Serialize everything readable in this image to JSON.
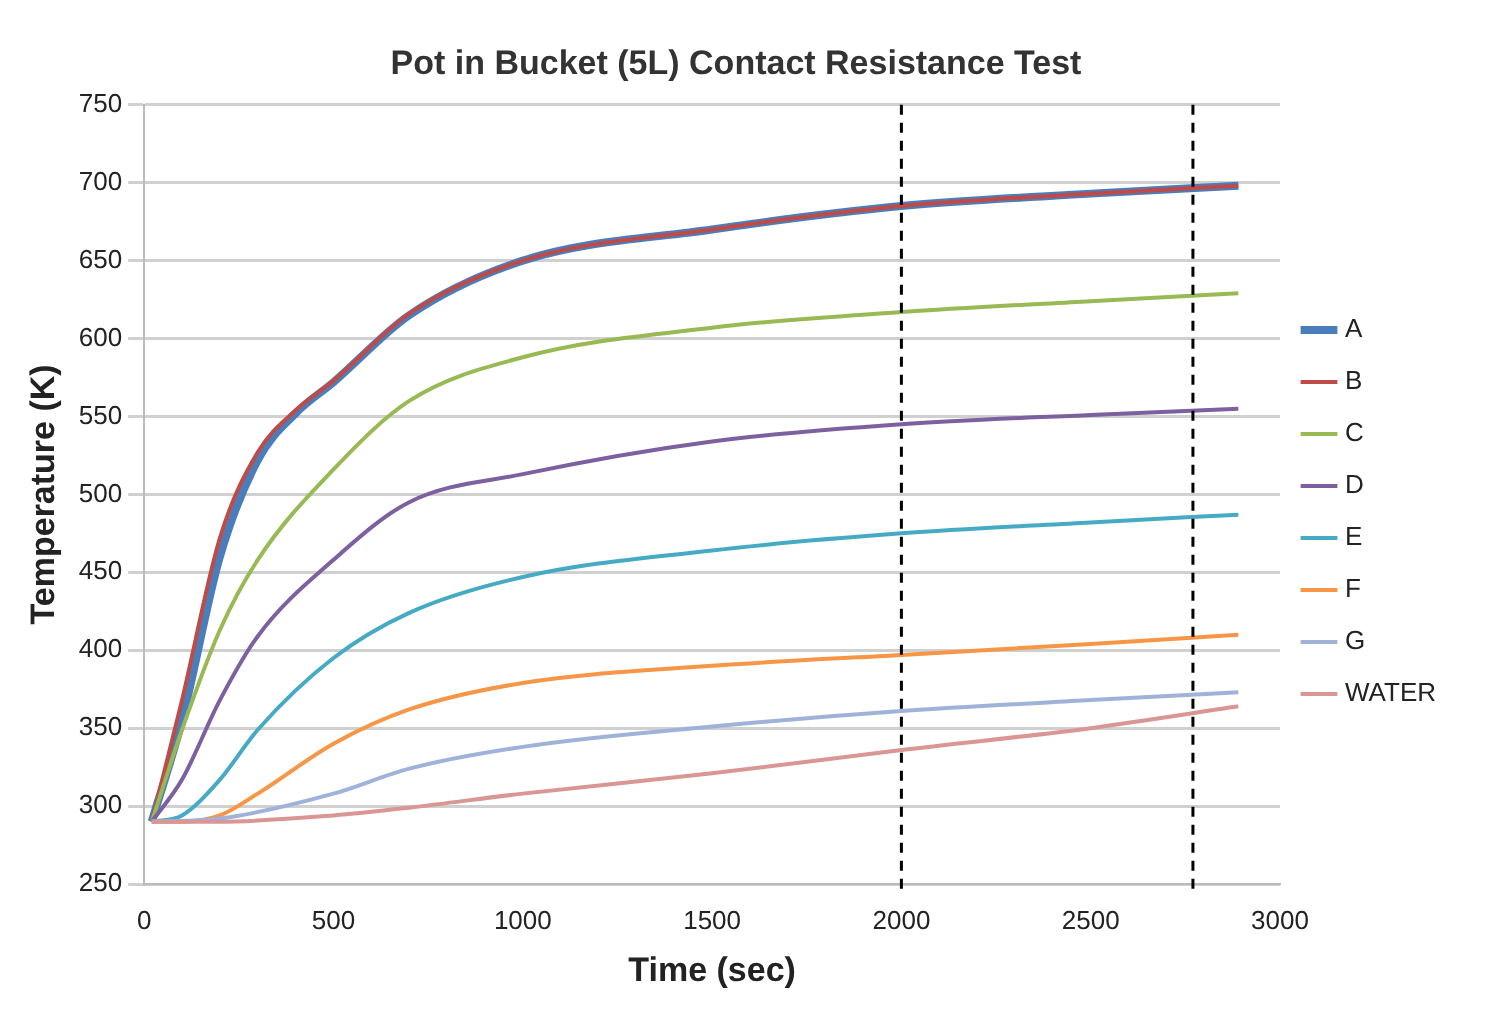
{
  "chart_data": {
    "type": "line",
    "title": "Pot in Bucket (5L) Contact Resistance Test",
    "xlabel": "Time (sec)",
    "ylabel": "Temperature (K)",
    "xlim": [
      0,
      3000
    ],
    "xticks": [
      0,
      500,
      1000,
      1500,
      2000,
      2500,
      3000
    ],
    "ylim": [
      250,
      750
    ],
    "yticks": [
      250,
      300,
      350,
      400,
      450,
      500,
      550,
      600,
      650,
      700,
      750
    ],
    "grid": "y",
    "legend": "right",
    "marker": "none",
    "line_style": "solid",
    "ref_lines": [
      {
        "axis": "x",
        "value": 2000,
        "color": "#000000",
        "line_style": "dashed"
      },
      {
        "axis": "x",
        "value": 2770,
        "color": "#000000",
        "line_style": "dashed"
      }
    ],
    "series": [
      {
        "name": "A",
        "color": "#4a7ebb",
        "x": [
          20,
          100,
          200,
          300,
          400,
          500,
          700,
          1000,
          1500,
          2000,
          2500,
          2890
        ],
        "values": [
          290,
          355,
          460,
          522,
          552,
          572,
          615,
          650,
          670,
          685,
          693,
          698
        ]
      },
      {
        "name": "B",
        "color": "#be4b48",
        "x": [
          20,
          100,
          200,
          300,
          400,
          500,
          700,
          1000,
          1500,
          2000,
          2500,
          2890
        ],
        "values": [
          290,
          368,
          472,
          527,
          554,
          573,
          616,
          650,
          670,
          685,
          693,
          698
        ]
      },
      {
        "name": "C",
        "color": "#98b954",
        "x": [
          20,
          100,
          200,
          300,
          500,
          700,
          1000,
          1500,
          2000,
          2500,
          2890
        ],
        "values": [
          290,
          349,
          413,
          458,
          516,
          560,
          588,
          607,
          617,
          624,
          629
        ]
      },
      {
        "name": "D",
        "color": "#7d60a0",
        "x": [
          20,
          100,
          200,
          300,
          500,
          700,
          1000,
          1500,
          2000,
          2500,
          2890
        ],
        "values": [
          290,
          317,
          368,
          409,
          458,
          495,
          513,
          534,
          545,
          551,
          555
        ]
      },
      {
        "name": "E",
        "color": "#46aac5",
        "x": [
          20,
          100,
          200,
          300,
          500,
          700,
          1000,
          1500,
          2000,
          2500,
          2890
        ],
        "values": [
          290,
          294,
          317,
          349,
          395,
          424,
          447,
          464,
          475,
          482,
          487
        ]
      },
      {
        "name": "F",
        "color": "#f79646",
        "x": [
          20,
          100,
          200,
          300,
          500,
          700,
          1000,
          1500,
          2000,
          2500,
          2890
        ],
        "values": [
          290,
          290,
          294,
          308,
          340,
          362,
          379,
          390,
          397,
          404,
          410
        ]
      },
      {
        "name": "G",
        "color": "#a0b2d9",
        "x": [
          20,
          200,
          500,
          700,
          1000,
          1500,
          2000,
          2500,
          2890
        ],
        "values": [
          290,
          292,
          308,
          324,
          338,
          351,
          361,
          368,
          373
        ]
      },
      {
        "name": "WATER",
        "color": "#d99694",
        "x": [
          20,
          200,
          500,
          700,
          1000,
          1500,
          2000,
          2500,
          2890
        ],
        "values": [
          290,
          290,
          294,
          299,
          308,
          321,
          336,
          350,
          364
        ]
      }
    ]
  }
}
